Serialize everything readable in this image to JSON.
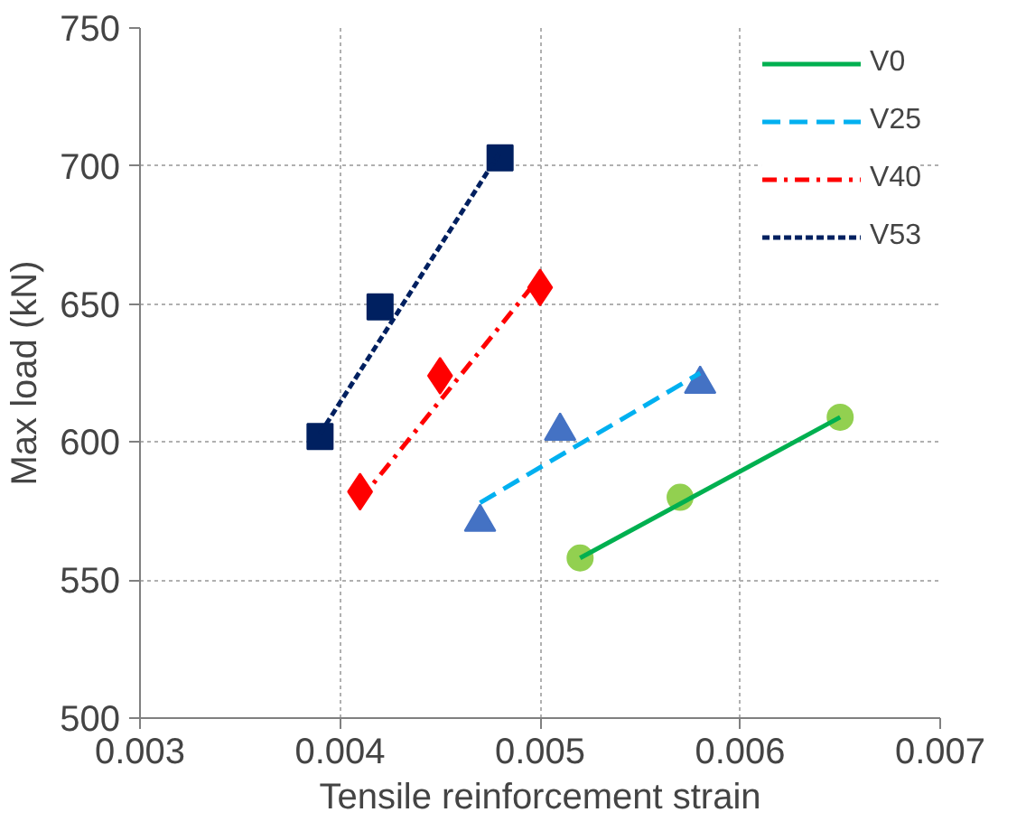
{
  "chart_data": {
    "type": "scatter",
    "xlabel": "Tensile reinforcement strain",
    "ylabel": "Max load (kN)",
    "xlim": [
      0.003,
      0.007
    ],
    "xticks": [
      0.003,
      0.004,
      0.005,
      0.006,
      0.007
    ],
    "ylim": [
      500,
      750
    ],
    "yticks": [
      500,
      550,
      600,
      650,
      700,
      750
    ],
    "grid": true,
    "legend": "top right",
    "series": [
      {
        "marker": "circle",
        "color": "#92d050",
        "x": [
          0.0052,
          0.0057,
          0.0065
        ],
        "values": [
          558,
          580,
          609
        ]
      },
      {
        "marker": "triangle",
        "color": "#4472c4",
        "x": [
          0.0047,
          0.0051,
          0.0058
        ],
        "values": [
          571,
          604,
          621
        ]
      },
      {
        "marker": "diamond",
        "color": "#ff0000",
        "x": [
          0.0041,
          0.0045,
          0.005
        ],
        "values": [
          582,
          624,
          656
        ]
      },
      {
        "marker": "square",
        "color": "#002060",
        "x": [
          0.0039,
          0.0042,
          0.0048
        ],
        "values": [
          602,
          649,
          703
        ]
      },
      {
        "type": "line",
        "name": "V0",
        "color": "#00b050",
        "line_style": "solid",
        "x": [
          0.0052,
          0.0065
        ],
        "values": [
          558,
          609
        ]
      },
      {
        "type": "line",
        "name": "V25",
        "color": "#00b0f0",
        "line_style": "dashed",
        "x": [
          0.0047,
          0.0058
        ],
        "values": [
          578,
          625
        ]
      },
      {
        "type": "line",
        "name": "V40",
        "color": "#ff0000",
        "line_style": "dashdot",
        "x": [
          0.0041,
          0.005
        ],
        "values": [
          579,
          660
        ]
      },
      {
        "type": "line",
        "name": "V53",
        "color": "#002060",
        "line_style": "dotted",
        "x": [
          0.0039,
          0.0048
        ],
        "values": [
          603,
          705
        ]
      }
    ]
  }
}
